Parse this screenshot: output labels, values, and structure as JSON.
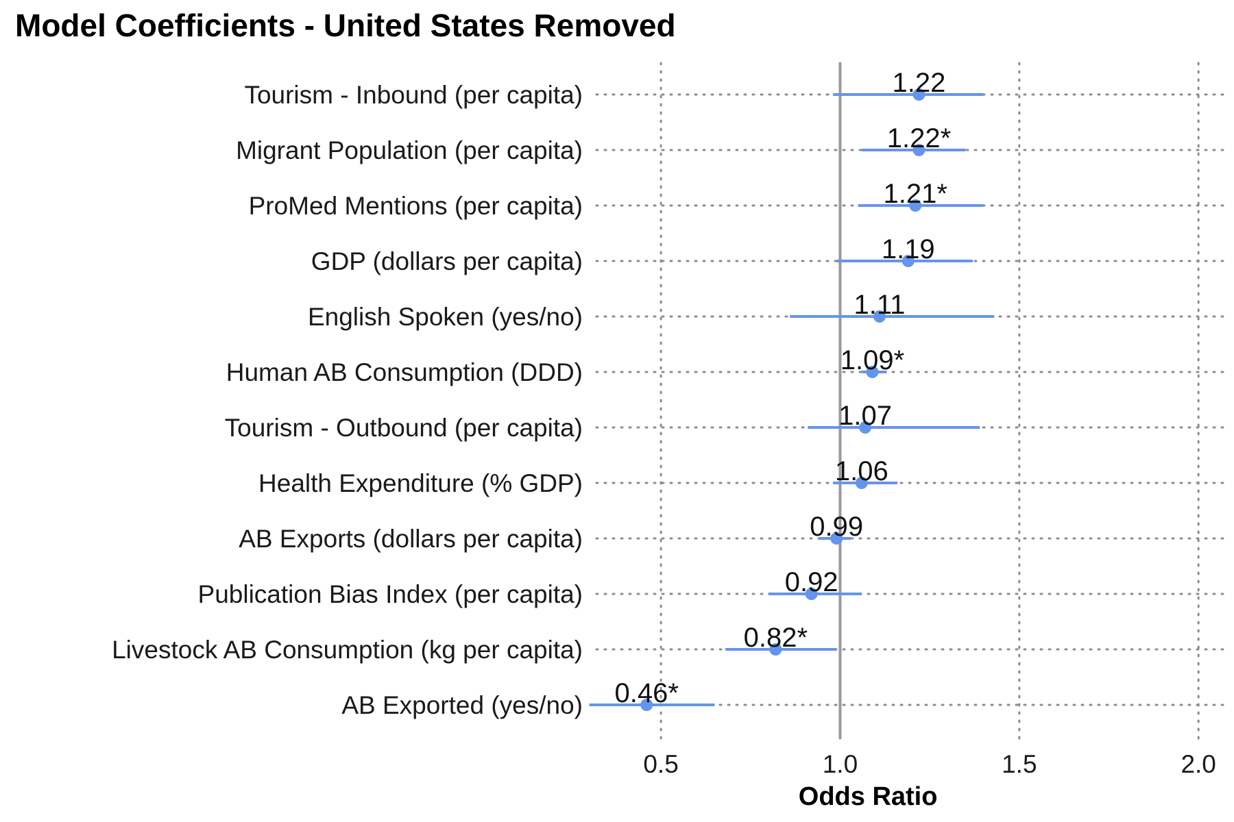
{
  "chart_data": {
    "type": "forest",
    "title": "Model Coefficients - United States Removed",
    "xlabel": "Odds Ratio",
    "ylabel": "",
    "xlim": [
      0.32,
      2.08
    ],
    "xticks": [
      0.5,
      1.0,
      1.5,
      2.0
    ],
    "xtick_labels": [
      "0.5",
      "1.0",
      "1.5",
      "2.0"
    ],
    "reference_line": 1.0,
    "grid": "dotted",
    "point_color": "#6495ED",
    "reference_color": "#999999",
    "grid_color": "#8c8c8c",
    "rows": [
      {
        "label": "Tourism - Inbound (per capita)",
        "estimate": 1.22,
        "lower": 0.98,
        "upper": 1.4,
        "value_label": "1.22"
      },
      {
        "label": "Migrant Population (per capita)",
        "estimate": 1.22,
        "lower": 1.06,
        "upper": 1.35,
        "value_label": "1.22*"
      },
      {
        "label": "ProMed Mentions (per capita)",
        "estimate": 1.21,
        "lower": 1.05,
        "upper": 1.4,
        "value_label": "1.21*"
      },
      {
        "label": "GDP (dollars per capita)",
        "estimate": 1.19,
        "lower": 0.99,
        "upper": 1.37,
        "value_label": "1.19"
      },
      {
        "label": "English Spoken (yes/no)",
        "estimate": 1.11,
        "lower": 0.86,
        "upper": 1.43,
        "value_label": "1.11"
      },
      {
        "label": "Human AB Consumption (DDD)",
        "estimate": 1.09,
        "lower": 1.06,
        "upper": 1.13,
        "value_label": "1.09*"
      },
      {
        "label": "Tourism - Outbound (per capita)",
        "estimate": 1.07,
        "lower": 0.91,
        "upper": 1.39,
        "value_label": "1.07"
      },
      {
        "label": "Health Expenditure (% GDP)",
        "estimate": 1.06,
        "lower": 0.98,
        "upper": 1.16,
        "value_label": "1.06"
      },
      {
        "label": "AB Exports (dollars per capita)",
        "estimate": 0.99,
        "lower": 0.94,
        "upper": 1.03,
        "value_label": "0.99"
      },
      {
        "label": "Publication Bias Index (per capita)",
        "estimate": 0.92,
        "lower": 0.8,
        "upper": 1.06,
        "value_label": "0.92"
      },
      {
        "label": "Livestock AB Consumption (kg per capita)",
        "estimate": 0.82,
        "lower": 0.68,
        "upper": 0.99,
        "value_label": "0.82*"
      },
      {
        "label": "AB Exported (yes/no)",
        "estimate": 0.46,
        "lower": 0.3,
        "upper": 0.65,
        "value_label": "0.46*"
      }
    ]
  }
}
